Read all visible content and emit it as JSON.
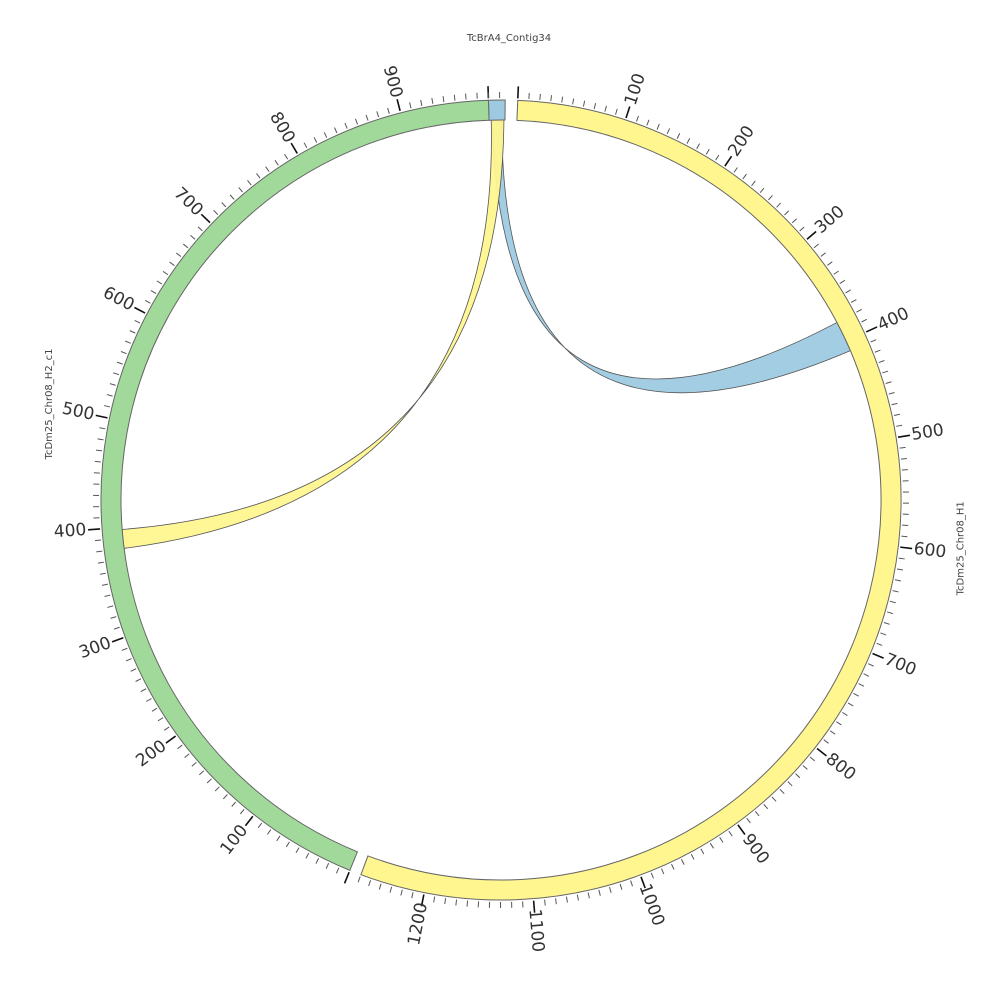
{
  "chart_data": {
    "type": "circos",
    "sequences": [
      {
        "id": "contig34",
        "name": "TcBrA4_Contig34",
        "length": 15,
        "color": "#9ecae1"
      },
      {
        "id": "h1",
        "name": "TcDm25_Chr08_H1",
        "length": 1260,
        "color": "#fff68f"
      },
      {
        "id": "h2",
        "name": "TcDm25_Chr08_H2_c1",
        "length": 980,
        "color": "#a1d99b"
      }
    ],
    "tick_minor_step": 10,
    "tick_major_step": 100,
    "links": [
      {
        "color": "#9ecae1",
        "from": {
          "seq": "contig34",
          "start": 3,
          "end": 12
        },
        "to": {
          "seq": "h1",
          "start": 380,
          "end": 410
        }
      },
      {
        "color": "#fff68f",
        "from": {
          "seq": "contig34",
          "start": 2,
          "end": 14
        },
        "to": {
          "seq": "h2",
          "start": 380,
          "end": 398
        }
      }
    ]
  }
}
